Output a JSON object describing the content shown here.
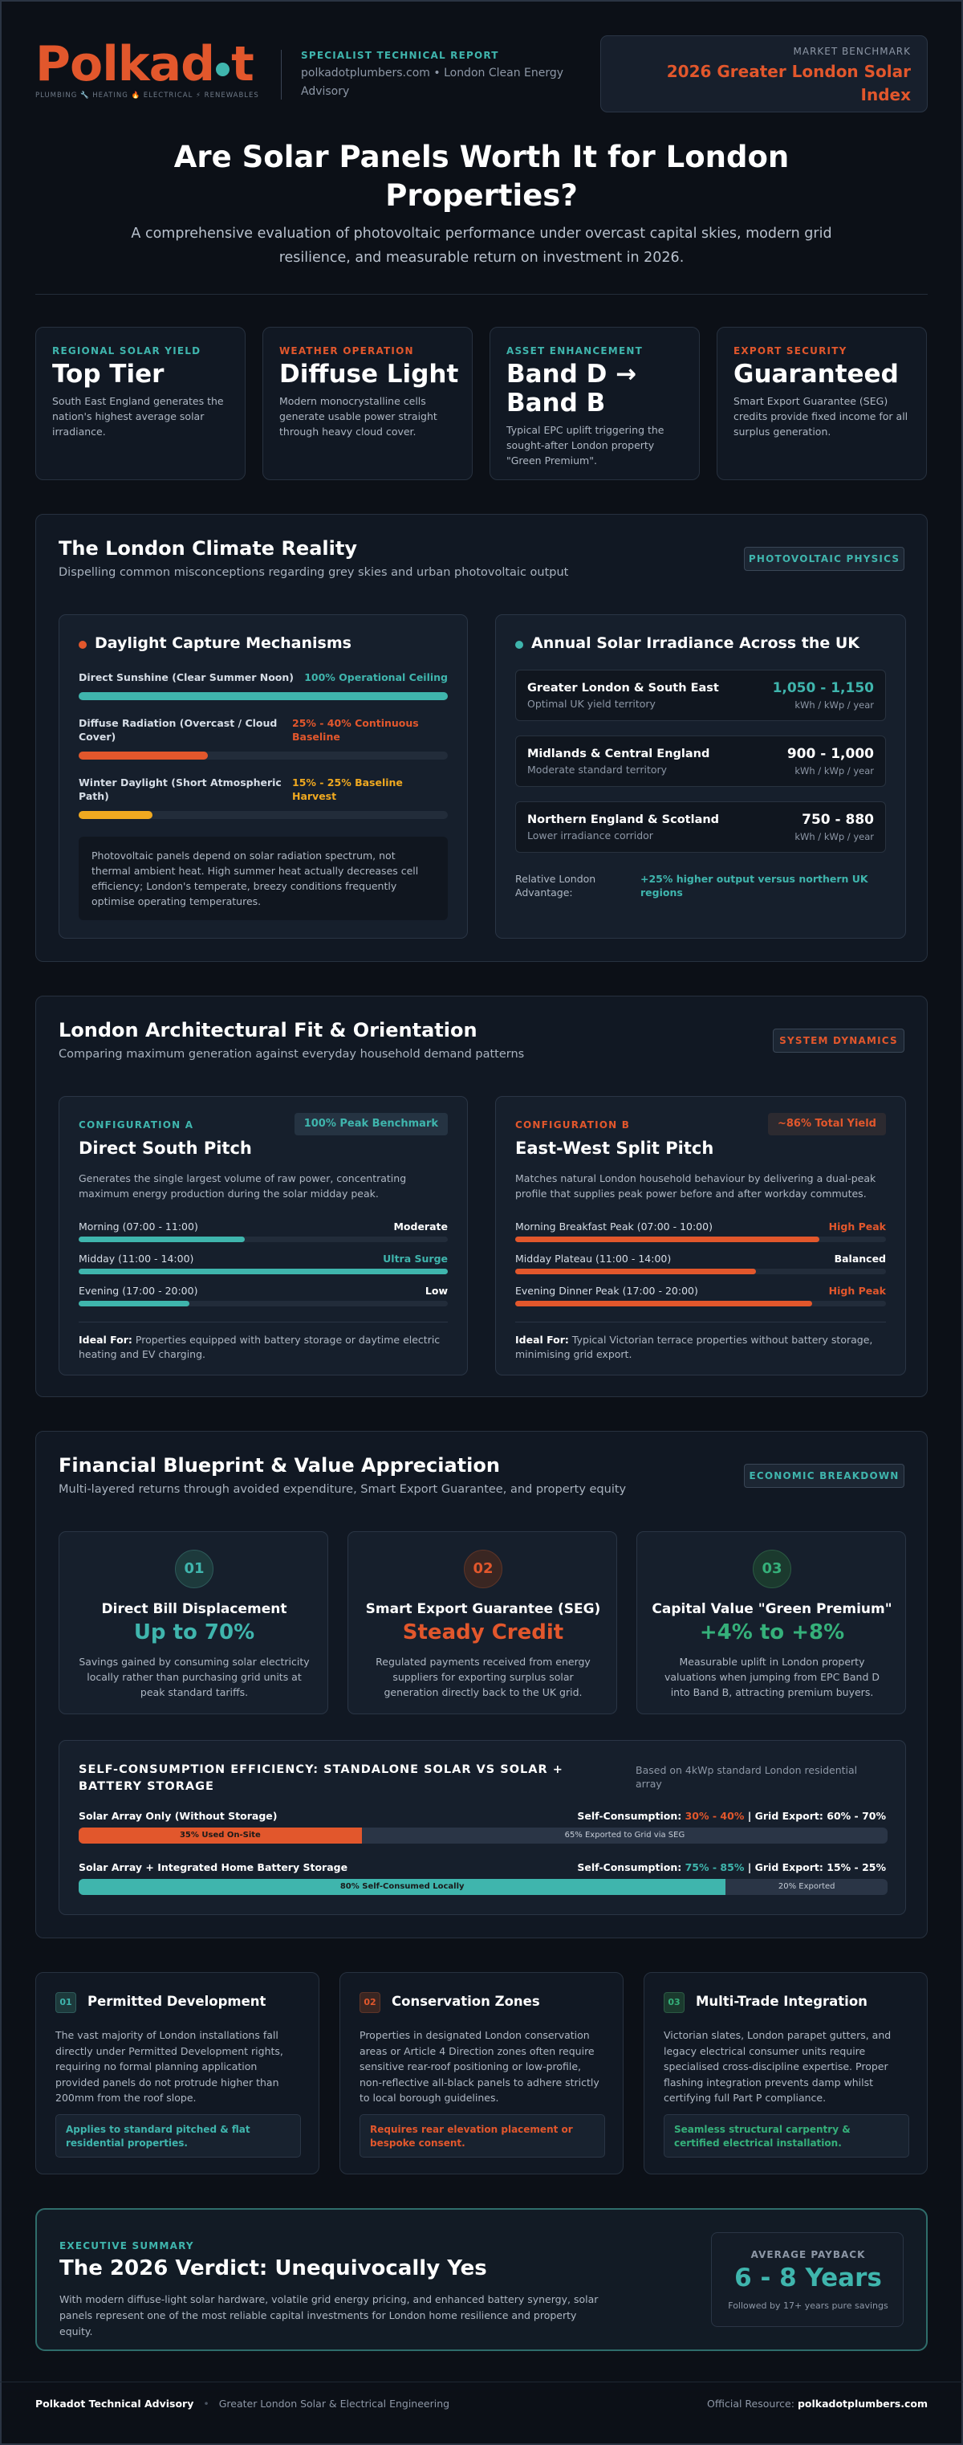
{
  "brand": {
    "logo": "Polkadot",
    "tagline": "PLUMBING 🔧 HEATING 🔥 ELECTRICAL ⚡ RENEWABLES",
    "report_label": "SPECIALIST TECHNICAL REPORT",
    "report_sub": "polkadotplumbers.com • London Clean Energy Advisory"
  },
  "benchmark": {
    "label": "MARKET BENCHMARK",
    "title": "2026 Greater London Solar Index"
  },
  "hero": {
    "title": "Are Solar Panels Worth It for London Properties?",
    "subtitle": "A comprehensive evaluation of photovoltaic performance under overcast capital skies, modern grid resilience, and measurable return on investment in 2026."
  },
  "stats": [
    {
      "kicker": "REGIONAL SOLAR YIELD",
      "value": "Top Tier",
      "text": "South East England generates the nation's highest average solar irradiance.",
      "color": "#3fb5ad"
    },
    {
      "kicker": "WEATHER OPERATION",
      "value": "Diffuse Light",
      "text": "Modern monocrystalline cells generate usable power straight through heavy cloud cover.",
      "color": "#e2572c"
    },
    {
      "kicker": "ASSET ENHANCEMENT",
      "value": "Band D → Band B",
      "text": "Typical EPC uplift triggering the sought-after London property \"Green Premium\".",
      "color": "#3fb5ad"
    },
    {
      "kicker": "EXPORT SECURITY",
      "value": "Guaranteed",
      "text": "Smart Export Guarantee (SEG) credits provide fixed income for all surplus generation.",
      "color": "#e2572c"
    }
  ],
  "climate": {
    "title": "The London Climate Reality",
    "subtitle": "Dispelling common misconceptions regarding grey skies and urban photovoltaic output",
    "badge": "PHOTOVOLTAIC PHYSICS",
    "capture": {
      "title": "Daylight Capture Mechanisms",
      "rows": [
        {
          "label": "Direct Sunshine (Clear Summer Noon)",
          "value": "100% Operational Ceiling",
          "pct": 100,
          "color": "#3fb5ad"
        },
        {
          "label": "Diffuse Radiation (Overcast / Cloud Cover)",
          "value": "25% - 40% Continuous Baseline",
          "pct": 35,
          "color": "#e2572c"
        },
        {
          "label": "Winter Daylight (Short Atmospheric Path)",
          "value": "15% - 25% Baseline Harvest",
          "pct": 20,
          "color": "#f0a920"
        }
      ],
      "note": "Photovoltaic panels depend on solar radiation spectrum, not thermal ambient heat. High summer heat actually decreases cell efficiency; London's temperate, breezy conditions frequently optimise operating temperatures."
    },
    "irradiance": {
      "title": "Annual Solar Irradiance Across the UK",
      "regions": [
        {
          "name": "Greater London & South East",
          "sub": "Optimal UK yield territory",
          "value": "1,050 - 1,150",
          "unit": "kWh / kWp / year",
          "color": "#3fb5ad"
        },
        {
          "name": "Midlands & Central England",
          "sub": "Moderate standard territory",
          "value": "900 - 1,000",
          "unit": "kWh / kWp / year",
          "color": "#ffffff"
        },
        {
          "name": "Northern England & Scotland",
          "sub": "Lower irradiance corridor",
          "value": "750 - 880",
          "unit": "kWh / kWp / year",
          "color": "#ffffff"
        }
      ],
      "adv_label": "Relative London Advantage:",
      "adv_value": "+25% higher output versus northern UK regions"
    }
  },
  "fit": {
    "title": "London Architectural Fit & Orientation",
    "subtitle": "Comparing maximum generation against everyday household demand patterns",
    "badge": "SYSTEM DYNAMICS",
    "a": {
      "kicker": "CONFIGURATION A",
      "badge": "100% Peak Benchmark",
      "title": "Direct South Pitch",
      "text": "Generates the single largest volume of raw power, concentrating maximum energy production during the solar midday peak.",
      "rows": [
        {
          "label": "Morning (07:00 - 11:00)",
          "value": "Moderate",
          "pct": 45
        },
        {
          "label": "Midday (11:00 - 14:00)",
          "value": "Ultra Surge",
          "pct": 100
        },
        {
          "label": "Evening (17:00 - 20:00)",
          "value": "Low",
          "pct": 30
        }
      ],
      "ideal_label": "Ideal For:",
      "ideal": "Properties equipped with battery storage or daytime electric heating and EV charging."
    },
    "b": {
      "kicker": "CONFIGURATION B",
      "badge": "~86% Total Yield",
      "title": "East-West Split Pitch",
      "text": "Matches natural London household behaviour by delivering a dual-peak profile that supplies peak power before and after workday commutes.",
      "rows": [
        {
          "label": "Morning Breakfast Peak (07:00 - 10:00)",
          "value": "High Peak",
          "pct": 82
        },
        {
          "label": "Midday Plateau (11:00 - 14:00)",
          "value": "Balanced",
          "pct": 65
        },
        {
          "label": "Evening Dinner Peak (17:00 - 20:00)",
          "value": "High Peak",
          "pct": 80
        }
      ],
      "ideal_label": "Ideal For:",
      "ideal": "Typical Victorian terrace properties without battery storage, minimising grid export."
    }
  },
  "finance": {
    "title": "Financial Blueprint & Value Appreciation",
    "subtitle": "Multi-layered returns through avoided expenditure, Smart Export Guarantee, and property equity",
    "badge": "ECONOMIC BREAKDOWN",
    "cards": [
      {
        "num": "01",
        "title": "Direct Bill Displacement",
        "value": "Up to 70%",
        "text": "Savings gained by consuming solar electricity locally rather than purchasing grid units at peak standard tariffs.",
        "color": "#3fb5ad"
      },
      {
        "num": "02",
        "title": "Smart Export Guarantee (SEG)",
        "value": "Steady Credit",
        "text": "Regulated payments received from energy suppliers for exporting surplus solar generation directly back to the UK grid.",
        "color": "#e2572c"
      },
      {
        "num": "03",
        "title": "Capital Value \"Green Premium\"",
        "value": "+4% to +8%",
        "text": "Measurable uplift in London property valuations when jumping from EPC Band D into Band B, attracting premium buyers.",
        "color": "#35b07a"
      }
    ],
    "efficiency": {
      "title": "SELF-CONSUMPTION EFFICIENCY: STANDALONE SOLAR VS SOLAR + BATTERY STORAGE",
      "note": "Based on 4kWp standard London residential array",
      "rows": [
        {
          "label": "Solar Array Only (Without Storage)",
          "sc_label": "Self-Consumption:",
          "sc_value": "30% - 40%",
          "ge_label": "| Grid Export: 60% - 70%",
          "used_pct": 35,
          "used_text": "35% Used On-Site",
          "export_text": "65% Exported to Grid via SEG",
          "color": "#e2572c"
        },
        {
          "label": "Solar Array + Integrated Home Battery Storage",
          "sc_label": "Self-Consumption:",
          "sc_value": "75% - 85%",
          "ge_label": "| Grid Export: 15% - 25%",
          "used_pct": 80,
          "used_text": "80% Self-Consumed Locally",
          "export_text": "20% Exported",
          "color": "#3fb5ad"
        }
      ]
    }
  },
  "planning": [
    {
      "num": "01",
      "title": "Permitted Development",
      "text": "The vast majority of London installations fall directly under Permitted Development rights, requiring no formal planning application provided panels do not protrude higher than 200mm from the roof slope.",
      "note": "Applies to standard pitched & flat residential properties.",
      "color": "#3fb5ad"
    },
    {
      "num": "02",
      "title": "Conservation Zones",
      "text": "Properties in designated London conservation areas or Article 4 Direction zones often require sensitive rear-roof positioning or low-profile, non-reflective all-black panels to adhere strictly to local borough guidelines.",
      "note": "Requires rear elevation placement or bespoke consent.",
      "color": "#e2572c"
    },
    {
      "num": "03",
      "title": "Multi-Trade Integration",
      "text": "Victorian slates, London parapet gutters, and legacy electrical consumer units require specialised cross-discipline expertise. Proper flashing integration prevents damp whilst certifying full Part P compliance.",
      "note": "Seamless structural carpentry & certified electrical installation.",
      "color": "#35b07a"
    }
  ],
  "verdict": {
    "kicker": "EXECUTIVE SUMMARY",
    "title": "The 2026 Verdict: Unequivocally Yes",
    "text": "With modern diffuse-light solar hardware, volatile grid energy pricing, and enhanced battery synergy, solar panels represent one of the most reliable capital investments for London home resilience and property equity.",
    "payback_label": "AVERAGE PAYBACK",
    "payback_value": "6 - 8 Years",
    "payback_sub": "Followed by 17+ years pure savings"
  },
  "footer": {
    "name": "Polkadot Technical Advisory",
    "sep": "•",
    "desc": "Greater London Solar & Electrical Engineering",
    "res_label": "Official Resource:",
    "res_link": "polkadotplumbers.com"
  }
}
